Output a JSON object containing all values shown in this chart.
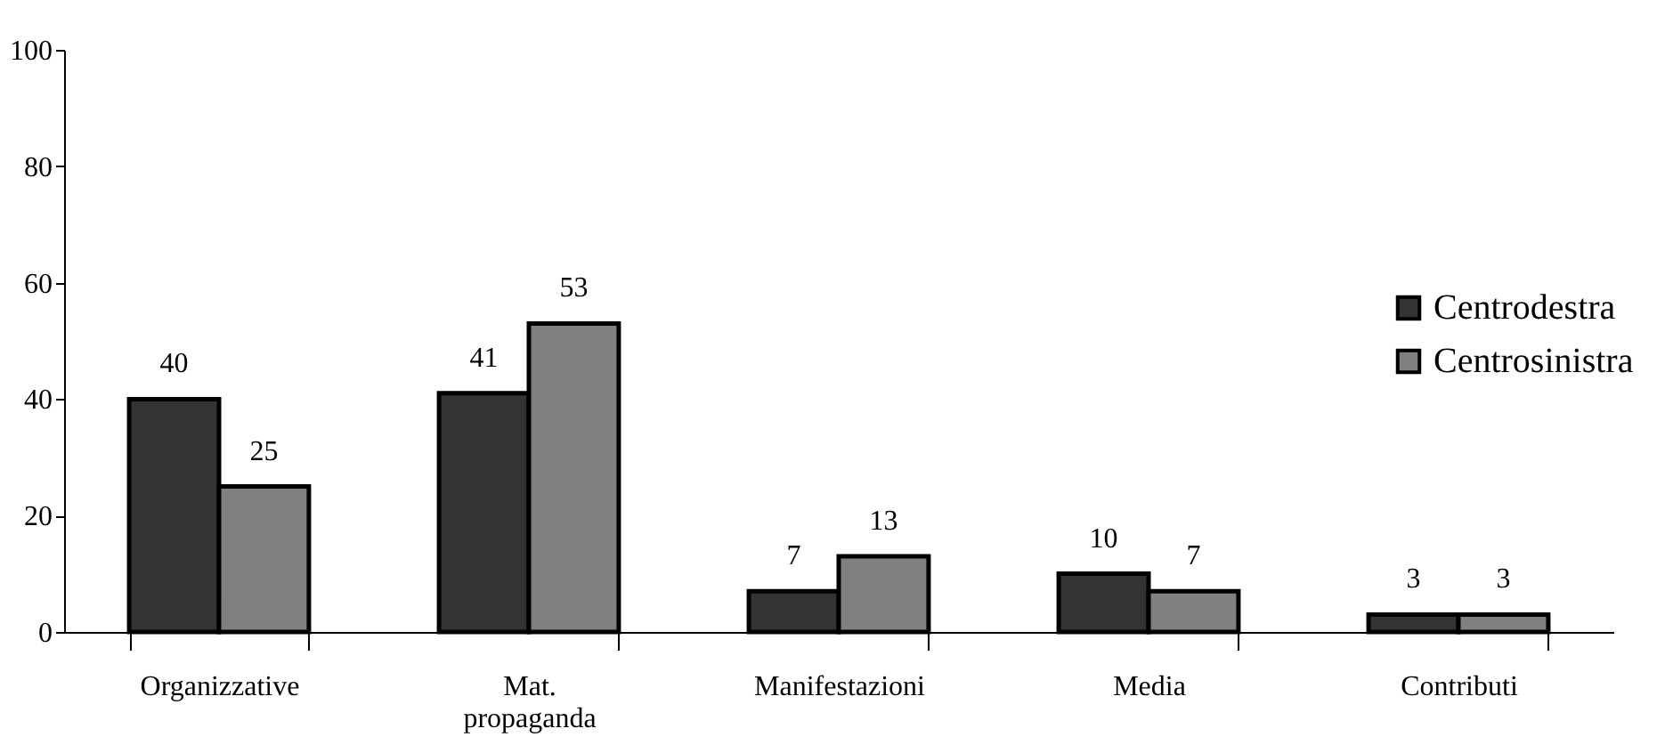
{
  "chart_data": {
    "type": "bar",
    "categories": [
      "Organizzative",
      "Mat. propaganda",
      "Manifestazioni",
      "Media",
      "Contributi"
    ],
    "series": [
      {
        "name": "Centrodestra",
        "color": "#333333",
        "values": [
          40,
          41,
          7,
          10,
          3
        ]
      },
      {
        "name": "Centrosinistra",
        "color": "#808080",
        "values": [
          25,
          53,
          13,
          7,
          3
        ]
      }
    ],
    "ylim": [
      0,
      100
    ],
    "yticks": [
      0,
      20,
      40,
      60,
      80,
      100
    ],
    "grid": false,
    "legend": "right",
    "data_labels": true
  }
}
